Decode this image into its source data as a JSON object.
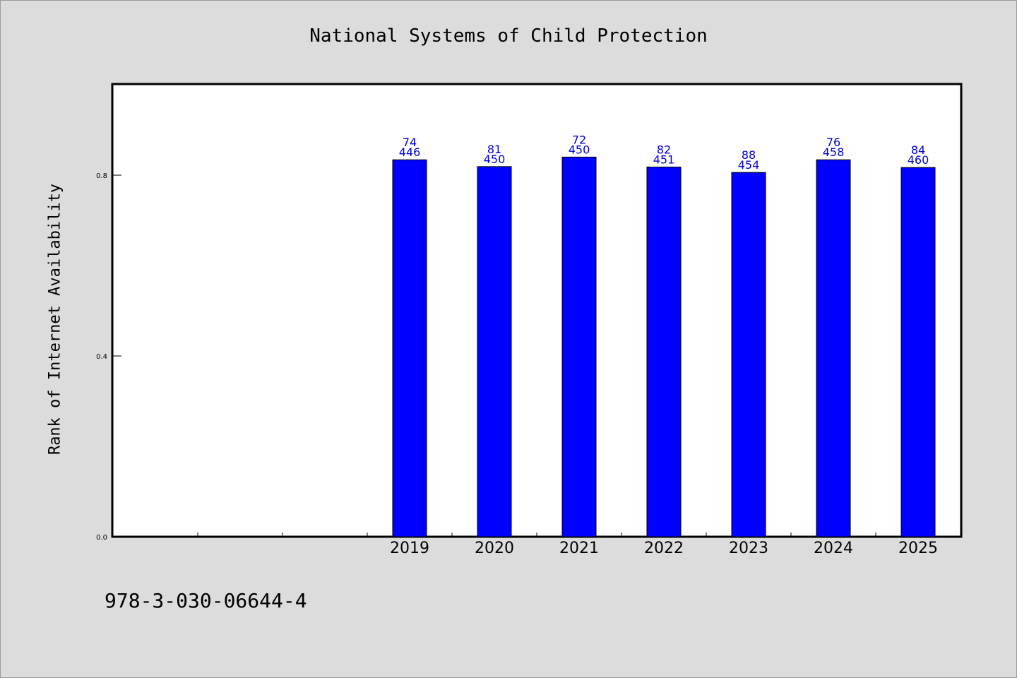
{
  "chart_data": {
    "type": "bar",
    "title": "National Systems of Child Protection",
    "ylabel": "Rank of Internet Availability",
    "xlabel": "",
    "categories": [
      "",
      "",
      "",
      "2019",
      "2020",
      "2021",
      "2022",
      "2023",
      "2024",
      "2025"
    ],
    "values": [
      null,
      null,
      null,
      0.834,
      0.819,
      0.84,
      0.818,
      0.806,
      0.834,
      0.817
    ],
    "labels_top": [
      null,
      null,
      null,
      "74",
      "81",
      "72",
      "82",
      "88",
      "76",
      "84"
    ],
    "labels_bottom": [
      null,
      null,
      null,
      "446",
      "450",
      "450",
      "451",
      "454",
      "458",
      "460"
    ],
    "yticks": [
      0.0,
      0.4,
      0.8
    ],
    "ytick_labels": [
      "0.0",
      "0.4",
      "0.8"
    ],
    "ylim": [
      0,
      1.0
    ],
    "grid": false,
    "colors": {
      "bar": "#0000ff",
      "label": "#0000e0",
      "background": "#dcdcdc",
      "plot_bg": "#ffffff"
    }
  },
  "footer": {
    "isbn": "978-3-030-06644-4"
  }
}
